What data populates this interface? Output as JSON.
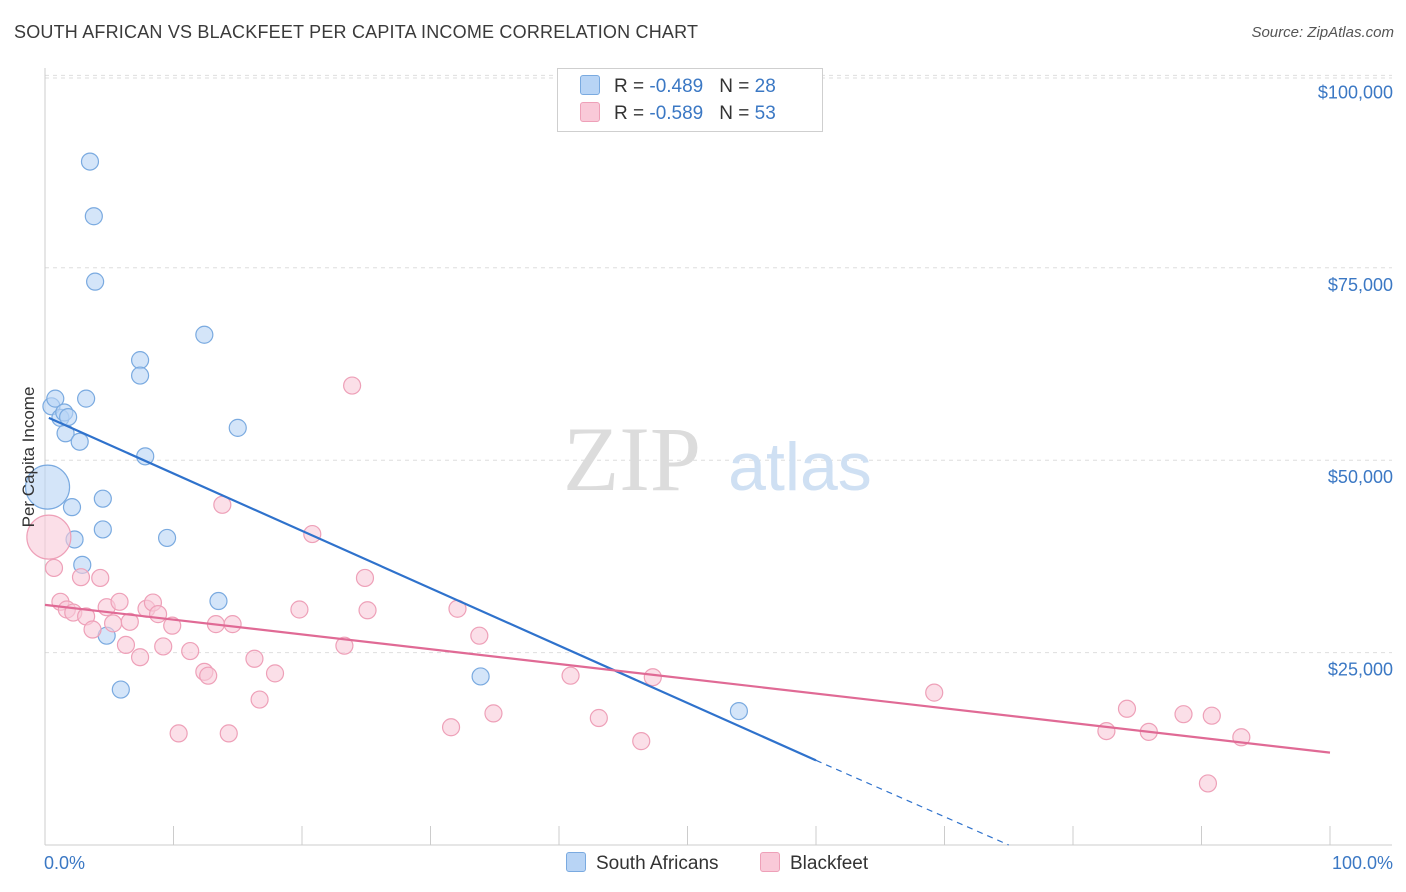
{
  "header": {
    "title": "SOUTH AFRICAN VS BLACKFEET PER CAPITA INCOME CORRELATION CHART",
    "source": "Source: ZipAtlas.com"
  },
  "watermark": {
    "zip": "ZIP",
    "atlas": "atlas"
  },
  "legend": {
    "rows": [
      {
        "r_label": "R = ",
        "r_value": "-0.489",
        "n_label": "N = ",
        "n_value": "28",
        "color": "#b8d4f5",
        "border": "#7aaae0"
      },
      {
        "r_label": "R = ",
        "r_value": "-0.589",
        "n_label": "N = ",
        "n_value": "53",
        "color": "#f9c9d8",
        "border": "#eea0b8"
      }
    ]
  },
  "bottom_legend": {
    "items": [
      {
        "label": "South Africans",
        "color": "#b8d4f5",
        "border": "#7aaae0"
      },
      {
        "label": "Blackfeet",
        "color": "#f9c9d8",
        "border": "#eea0b8"
      }
    ]
  },
  "chart_data": {
    "type": "scatter",
    "title": "SOUTH AFRICAN VS BLACKFEET PER CAPITA INCOME CORRELATION CHART",
    "ylabel": "Per Capita Income",
    "xlim": [
      0,
      100
    ],
    "ylim": [
      0,
      102000
    ],
    "x_tick_labels": [
      "0.0%",
      "100.0%"
    ],
    "y_ticks": [
      {
        "value": 25000,
        "label": "$25,000"
      },
      {
        "value": 50000,
        "label": "$50,000"
      },
      {
        "value": 75000,
        "label": "$75,000"
      },
      {
        "value": 100000,
        "label": "$100,000"
      }
    ],
    "grid": true,
    "legend_position": "top-center",
    "series": [
      {
        "name": "South Africans",
        "color": "#7aaae0",
        "fill": "#b8d4f5",
        "trend": {
          "x0": 0.3,
          "y0": 55500,
          "x1": 60,
          "y1": 11000,
          "dash_to_x": 75,
          "dash_to_y": 0,
          "color": "#2f72cc"
        },
        "points": [
          {
            "x": 0.2,
            "y": 46500,
            "big": true
          },
          {
            "x": 0.5,
            "y": 57000
          },
          {
            "x": 0.8,
            "y": 58000
          },
          {
            "x": 1.2,
            "y": 55500
          },
          {
            "x": 1.5,
            "y": 56200
          },
          {
            "x": 1.6,
            "y": 53500
          },
          {
            "x": 1.8,
            "y": 55600
          },
          {
            "x": 2.1,
            "y": 43900
          },
          {
            "x": 2.3,
            "y": 39700
          },
          {
            "x": 2.7,
            "y": 52400
          },
          {
            "x": 2.9,
            "y": 36400
          },
          {
            "x": 3.2,
            "y": 58000
          },
          {
            "x": 3.5,
            "y": 88800
          },
          {
            "x": 3.8,
            "y": 81700
          },
          {
            "x": 3.9,
            "y": 73200
          },
          {
            "x": 4.5,
            "y": 45000
          },
          {
            "x": 4.5,
            "y": 41000
          },
          {
            "x": 4.8,
            "y": 27200
          },
          {
            "x": 5.9,
            "y": 20200
          },
          {
            "x": 7.4,
            "y": 63000
          },
          {
            "x": 7.4,
            "y": 61000
          },
          {
            "x": 7.8,
            "y": 50500
          },
          {
            "x": 9.5,
            "y": 39900
          },
          {
            "x": 12.4,
            "y": 66300
          },
          {
            "x": 13.5,
            "y": 31700
          },
          {
            "x": 15.0,
            "y": 54200
          },
          {
            "x": 33.9,
            "y": 21900
          },
          {
            "x": 54.0,
            "y": 17400
          }
        ]
      },
      {
        "name": "Blackfeet",
        "color": "#eea0b8",
        "fill": "#f9c9d8",
        "trend": {
          "x0": 0,
          "y0": 31200,
          "x1": 100,
          "y1": 12000,
          "color": "#e06a95"
        },
        "points": [
          {
            "x": 0.3,
            "y": 40000,
            "big": true
          },
          {
            "x": 0.7,
            "y": 36000
          },
          {
            "x": 1.2,
            "y": 31600
          },
          {
            "x": 1.7,
            "y": 30600
          },
          {
            "x": 2.2,
            "y": 30200
          },
          {
            "x": 2.8,
            "y": 34800
          },
          {
            "x": 3.2,
            "y": 29700
          },
          {
            "x": 3.7,
            "y": 28000
          },
          {
            "x": 4.3,
            "y": 34700
          },
          {
            "x": 4.8,
            "y": 30900
          },
          {
            "x": 5.3,
            "y": 28800
          },
          {
            "x": 5.8,
            "y": 31600
          },
          {
            "x": 6.3,
            "y": 26000
          },
          {
            "x": 6.6,
            "y": 29000
          },
          {
            "x": 7.4,
            "y": 24400
          },
          {
            "x": 7.9,
            "y": 30700
          },
          {
            "x": 8.4,
            "y": 31500
          },
          {
            "x": 8.8,
            "y": 30000
          },
          {
            "x": 9.2,
            "y": 25800
          },
          {
            "x": 9.9,
            "y": 28500
          },
          {
            "x": 10.4,
            "y": 14500
          },
          {
            "x": 11.3,
            "y": 25200
          },
          {
            "x": 12.4,
            "y": 22500
          },
          {
            "x": 12.7,
            "y": 22000
          },
          {
            "x": 13.3,
            "y": 28700
          },
          {
            "x": 13.8,
            "y": 44200
          },
          {
            "x": 14.3,
            "y": 14500
          },
          {
            "x": 14.6,
            "y": 28700
          },
          {
            "x": 16.3,
            "y": 24200
          },
          {
            "x": 16.7,
            "y": 18900
          },
          {
            "x": 17.9,
            "y": 22300
          },
          {
            "x": 19.8,
            "y": 30600
          },
          {
            "x": 20.8,
            "y": 40400
          },
          {
            "x": 23.3,
            "y": 25900
          },
          {
            "x": 23.9,
            "y": 59700
          },
          {
            "x": 24.9,
            "y": 34700
          },
          {
            "x": 25.1,
            "y": 30500
          },
          {
            "x": 31.6,
            "y": 15300
          },
          {
            "x": 32.1,
            "y": 30700
          },
          {
            "x": 33.8,
            "y": 27200
          },
          {
            "x": 34.9,
            "y": 17100
          },
          {
            "x": 40.9,
            "y": 22000
          },
          {
            "x": 43.1,
            "y": 16500
          },
          {
            "x": 46.4,
            "y": 13500
          },
          {
            "x": 47.3,
            "y": 21800
          },
          {
            "x": 69.2,
            "y": 19800
          },
          {
            "x": 82.6,
            "y": 14800
          },
          {
            "x": 84.2,
            "y": 17700
          },
          {
            "x": 85.9,
            "y": 14700
          },
          {
            "x": 88.6,
            "y": 17000
          },
          {
            "x": 90.5,
            "y": 8000
          },
          {
            "x": 90.8,
            "y": 16800
          },
          {
            "x": 93.1,
            "y": 14000
          }
        ]
      }
    ]
  }
}
